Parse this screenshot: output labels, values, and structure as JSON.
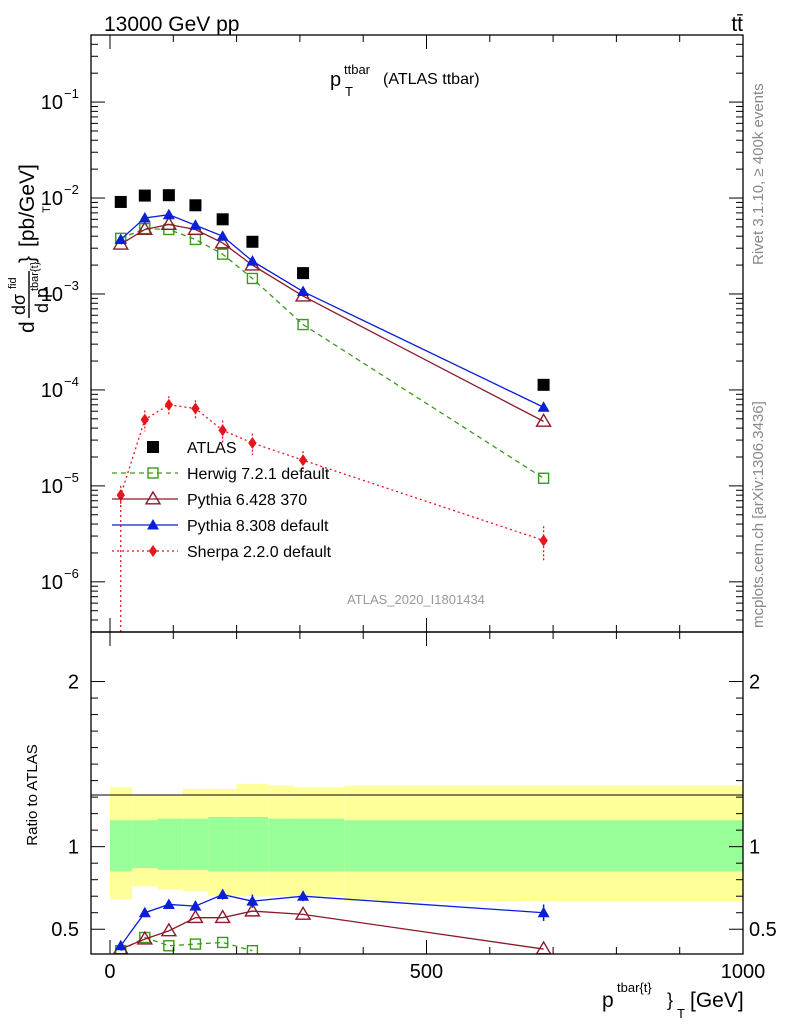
{
  "header": {
    "energy_label": "13000 GeV pp",
    "process_label": "tt̄"
  },
  "side_text": {
    "rivet": "Rivet 3.1.10, ≥ 400k events",
    "mcplots": "mcplots.cern.ch [arXiv:1306.3436]"
  },
  "chart_data": [
    {
      "type": "scatter",
      "panel": "main",
      "title_main": "p",
      "title_sup": "ttbar",
      "title_sub": "T",
      "title_suffix": "(ATLAS ttbar)",
      "analysis_label": "ATLAS_2020_I1801434",
      "ylabel": "dσ^fid / d p^tbar{t}_T  [pb/GeV]",
      "ylabel_parts": {
        "d": "d",
        "sigma": "dσ",
        "fid": "fid",
        "bar": "tbar{t}",
        "brace_close": "}",
        "unit": "[pb/GeV]",
        "dp": "d p",
        "T": "T"
      },
      "yscale": "log",
      "xlim": [
        -30,
        1000
      ],
      "ylim": [
        3e-07,
        0.5
      ],
      "yticks": [
        {
          "v": 1e-06,
          "base": "10",
          "exp": "−6"
        },
        {
          "v": 1e-05,
          "base": "10",
          "exp": "−5"
        },
        {
          "v": 0.0001,
          "base": "10",
          "exp": "−4"
        },
        {
          "v": 0.001,
          "base": "10",
          "exp": "−3"
        },
        {
          "v": 0.01,
          "base": "10",
          "exp": "−2"
        },
        {
          "v": 0.1,
          "base": "10",
          "exp": "−1"
        }
      ],
      "legend_position": "left-middle",
      "series": [
        {
          "name": "ATLAS",
          "style": "data",
          "color": "#000000",
          "marker": "square",
          "x": [
            17,
            55,
            93,
            135,
            178,
            225,
            305,
            685
          ],
          "y": [
            0.0091,
            0.0106,
            0.0107,
            0.0084,
            0.006,
            0.0035,
            0.00165,
            0.000113
          ]
        },
        {
          "name": "Herwig 7.2.1 default",
          "style": "dashed",
          "color": "#3a9a1a",
          "marker": "open-square",
          "x": [
            17,
            55,
            93,
            135,
            178,
            225,
            305,
            685
          ],
          "y": [
            0.0038,
            0.0048,
            0.0047,
            0.0037,
            0.0026,
            0.00145,
            0.00048,
            1.2e-05
          ]
        },
        {
          "name": "Pythia 6.428 370",
          "style": "solid",
          "color": "#8b1a2b",
          "marker": "open-triangle",
          "x": [
            17,
            55,
            93,
            135,
            178,
            225,
            305,
            685
          ],
          "y": [
            0.0033,
            0.0047,
            0.0053,
            0.0047,
            0.0034,
            0.002,
            0.00095,
            4.7e-05
          ]
        },
        {
          "name": "Pythia 8.308 default",
          "style": "solid",
          "color": "#0a1fd6",
          "marker": "triangle",
          "x": [
            17,
            55,
            93,
            135,
            178,
            225,
            305,
            685
          ],
          "y": [
            0.0037,
            0.0062,
            0.0067,
            0.0052,
            0.004,
            0.0022,
            0.00106,
            6.6e-05
          ]
        },
        {
          "name": "Sherpa 2.2.0 default",
          "style": "dotted",
          "color": "#e8141c",
          "marker": "diamond",
          "x": [
            17,
            55,
            93,
            135,
            178,
            225,
            305,
            685
          ],
          "y": [
            8e-06,
            4.9e-05,
            7e-05,
            6.4e-05,
            3.8e-05,
            2.8e-05,
            1.85e-05,
            2.7e-06
          ],
          "err": [
            2e-06,
            1.2e-05,
            1.6e-05,
            1.4e-05,
            1e-05,
            7e-06,
            4.5e-06,
            1.1e-06
          ]
        }
      ]
    },
    {
      "type": "scatter",
      "panel": "ratio",
      "ylabel": "Ratio to ATLAS",
      "xlabel_main": "p",
      "xlabel_sup": "tbar{t}",
      "xlabel_sub": "T",
      "xlabel_unit": "[GeV]",
      "xlim": [
        -30,
        1000
      ],
      "ylim": [
        0.35,
        2.3
      ],
      "xticks": [
        {
          "v": 0,
          "label": "0"
        },
        {
          "v": 500,
          "label": "500"
        },
        {
          "v": 1000,
          "label": "1000"
        }
      ],
      "yticks": [
        {
          "v": 0.5,
          "label": "0.5"
        },
        {
          "v": 1,
          "label": "1"
        },
        {
          "v": 2,
          "label": "2"
        }
      ],
      "bands": {
        "edges": [
          0,
          35,
          75,
          115,
          155,
          200,
          250,
          290,
          370,
          1000
        ],
        "inner_lo": [
          0.85,
          0.87,
          0.86,
          0.86,
          0.85,
          0.85,
          0.85,
          0.85,
          0.85
        ],
        "inner_hi": [
          1.16,
          1.16,
          1.17,
          1.17,
          1.18,
          1.18,
          1.17,
          1.17,
          1.16
        ],
        "outer_lo": [
          0.68,
          0.76,
          0.74,
          0.73,
          0.7,
          0.7,
          0.7,
          0.7,
          0.67
        ],
        "outer_hi": [
          1.36,
          1.31,
          1.31,
          1.35,
          1.35,
          1.38,
          1.37,
          1.36,
          1.37
        ],
        "inner_color": "#99ff99",
        "outer_color": "#ffff99"
      },
      "series": [
        {
          "name": "Herwig 7.2.1 default",
          "style": "dashed",
          "color": "#3a9a1a",
          "marker": "open-square",
          "x": [
            17,
            55,
            93,
            135,
            178,
            225
          ],
          "y": [
            0.37,
            0.45,
            0.4,
            0.41,
            0.42,
            0.37
          ]
        },
        {
          "name": "Pythia 6.428 370",
          "style": "solid",
          "color": "#8b1a2b",
          "marker": "open-triangle",
          "x": [
            17,
            55,
            93,
            135,
            178,
            225,
            305,
            685
          ],
          "y": [
            0.38,
            0.44,
            0.49,
            0.57,
            0.57,
            0.61,
            0.59,
            0.38
          ]
        },
        {
          "name": "Pythia 8.308 default",
          "style": "solid",
          "color": "#0a1fd6",
          "marker": "triangle",
          "x": [
            17,
            55,
            93,
            135,
            178,
            225,
            305,
            685
          ],
          "y": [
            0.4,
            0.6,
            0.65,
            0.64,
            0.71,
            0.67,
            0.7,
            0.6
          ],
          "err": [
            0.02,
            0.02,
            0.02,
            0.03,
            0.03,
            0.04,
            0.03,
            0.05
          ]
        }
      ]
    }
  ]
}
